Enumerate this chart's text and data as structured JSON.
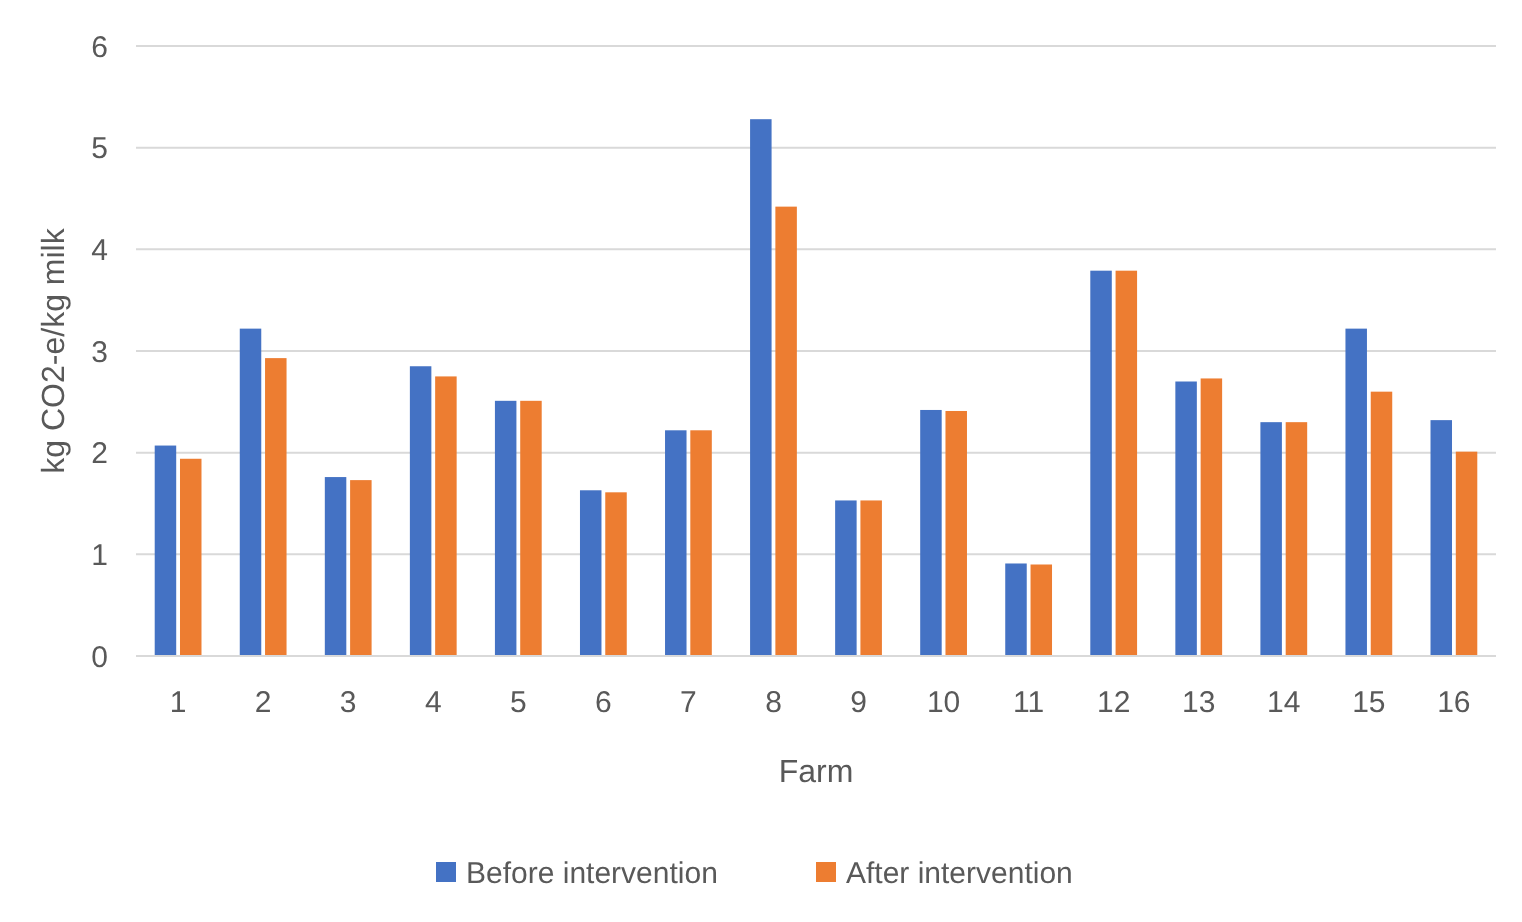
{
  "chart_data": {
    "type": "bar",
    "xlabel": "Farm",
    "ylabel": "kg CO2-e/kg milk",
    "categories": [
      "1",
      "2",
      "3",
      "4",
      "5",
      "6",
      "7",
      "8",
      "9",
      "10",
      "11",
      "12",
      "13",
      "14",
      "15",
      "16"
    ],
    "series": [
      {
        "name": "Before intervention",
        "color": "#4472c4",
        "values": [
          2.07,
          3.22,
          1.76,
          2.85,
          2.51,
          1.63,
          2.22,
          5.28,
          1.53,
          2.42,
          0.91,
          3.79,
          2.7,
          2.3,
          3.22,
          2.32
        ]
      },
      {
        "name": "After intervention",
        "color": "#ed7d31",
        "values": [
          1.94,
          2.93,
          1.73,
          2.75,
          2.51,
          1.61,
          2.22,
          4.42,
          1.53,
          2.41,
          0.9,
          3.79,
          2.73,
          2.3,
          2.6,
          2.01
        ]
      }
    ],
    "ylim": [
      0,
      6
    ],
    "yticks": [
      0,
      1,
      2,
      3,
      4,
      5,
      6
    ],
    "grid": "y",
    "legend": "bottom"
  }
}
